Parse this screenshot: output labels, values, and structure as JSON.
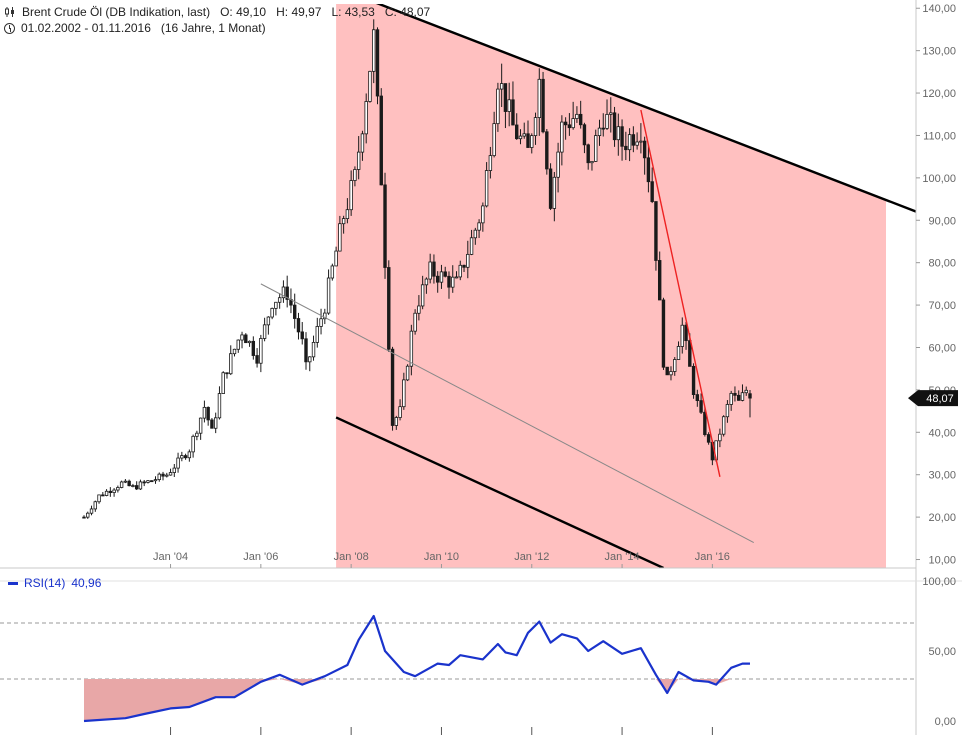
{
  "header": {
    "instrument": "Brent Crude Öl (DB Indikation, last)",
    "open": "O: 49,10",
    "high": "H: 49,97",
    "low": "L: 43,53",
    "close": "C: 48,07",
    "range": "01.02.2002 - 01.11.2016",
    "duration": "(16 Jahre, 1 Monat)"
  },
  "price_tag": "48,07",
  "rsi_legend": {
    "label": "RSI(14)",
    "value": "40,96"
  },
  "colors": {
    "channel_fill": "#ffc0c0",
    "candle": "#1a1a1a",
    "rsi_line": "#1a33cc",
    "rsi_fill": "#e8a7a7",
    "trend_red": "#ee2222",
    "mid_line": "#888888",
    "price_tag_bg": "#111111"
  },
  "chart_data": [
    {
      "type": "candlestick",
      "title": "Brent Crude Öl (DB Indikation, last)",
      "x_tick_labels": [
        "Jan '04",
        "Jan '06",
        "Jan '08",
        "Jan '10",
        "Jan '12",
        "Jan '14",
        "Jan '16"
      ],
      "y_tick_labels": [
        "10,00",
        "20,00",
        "30,00",
        "40,00",
        "50,00",
        "60,00",
        "70,00",
        "80,00",
        "90,00",
        "100,00",
        "110,00",
        "120,00",
        "130,00",
        "140,00"
      ],
      "ylim": [
        8,
        141
      ],
      "x_range": [
        "2002-02",
        "2016-11"
      ],
      "grid": false,
      "series_anchor_points": [
        [
          "2002-02",
          20
        ],
        [
          "2002-06",
          25
        ],
        [
          "2002-12",
          28
        ],
        [
          "2003-03",
          27
        ],
        [
          "2003-06",
          28
        ],
        [
          "2003-12",
          30
        ],
        [
          "2004-06",
          36
        ],
        [
          "2004-10",
          46
        ],
        [
          "2004-12",
          40
        ],
        [
          "2005-03",
          53
        ],
        [
          "2005-08",
          64
        ],
        [
          "2005-12",
          58
        ],
        [
          "2006-04",
          71
        ],
        [
          "2006-08",
          73
        ],
        [
          "2006-12",
          61
        ],
        [
          "2007-01",
          55
        ],
        [
          "2007-06",
          70
        ],
        [
          "2007-11",
          91
        ],
        [
          "2008-02",
          100
        ],
        [
          "2008-07",
          133
        ],
        [
          "2008-09",
          100
        ],
        [
          "2008-12",
          42
        ],
        [
          "2009-02",
          45
        ],
        [
          "2009-06",
          69
        ],
        [
          "2009-10",
          78
        ],
        [
          "2010-05",
          75
        ],
        [
          "2010-12",
          93
        ],
        [
          "2011-04",
          124
        ],
        [
          "2011-08",
          112
        ],
        [
          "2011-12",
          106
        ],
        [
          "2012-03",
          123
        ],
        [
          "2012-06",
          95
        ],
        [
          "2012-09",
          112
        ],
        [
          "2013-01",
          115
        ],
        [
          "2013-04",
          102
        ],
        [
          "2013-08",
          115
        ],
        [
          "2014-01",
          108
        ],
        [
          "2014-06",
          112
        ],
        [
          "2014-09",
          95
        ],
        [
          "2014-12",
          57
        ],
        [
          "2015-01",
          52
        ],
        [
          "2015-05",
          65
        ],
        [
          "2015-08",
          50
        ],
        [
          "2015-12",
          37
        ],
        [
          "2016-01",
          34
        ],
        [
          "2016-03",
          40
        ],
        [
          "2016-06",
          49
        ],
        [
          "2016-08",
          47
        ],
        [
          "2016-10",
          50
        ],
        [
          "2016-11",
          48.07
        ]
      ],
      "last": {
        "open": 49.1,
        "high": 49.97,
        "low": 43.53,
        "close": 48.07
      },
      "annotations": {
        "channel_upper": [
          [
            "2008-07",
            141.5
          ],
          [
            "2021-04",
            89
          ]
        ],
        "channel_lower": [
          [
            "2007-09",
            43.5
          ],
          [
            "2014-12",
            8
          ]
        ],
        "mid_line": [
          [
            "2006-01",
            75
          ],
          [
            "2016-12",
            14
          ]
        ],
        "red_trend": [
          [
            "2014-06",
            116
          ],
          [
            "2016-03",
            29.5
          ]
        ],
        "channel_shading_start": "2007-09"
      }
    },
    {
      "type": "line",
      "title": "RSI(14)",
      "y_tick_labels": [
        "0,00",
        "50,00",
        "100,00"
      ],
      "ylim": [
        0,
        100
      ],
      "reference_levels": [
        30,
        70
      ],
      "last_value": 40.96,
      "series": [
        {
          "name": "RSI(14)",
          "points": [
            [
              "2002-02",
              0
            ],
            [
              "2003-01",
              2
            ],
            [
              "2003-06",
              5
            ],
            [
              "2004-01",
              9
            ],
            [
              "2004-06",
              10
            ],
            [
              "2005-01",
              17
            ],
            [
              "2005-06",
              17
            ],
            [
              "2006-01",
              28
            ],
            [
              "2006-06",
              33
            ],
            [
              "2006-12",
              26
            ],
            [
              "2007-06",
              32
            ],
            [
              "2007-12",
              40
            ],
            [
              "2008-03",
              58
            ],
            [
              "2008-07",
              75
            ],
            [
              "2008-10",
              50
            ],
            [
              "2009-03",
              35
            ],
            [
              "2009-06",
              32
            ],
            [
              "2009-12",
              41
            ],
            [
              "2010-03",
              40
            ],
            [
              "2010-06",
              47
            ],
            [
              "2010-12",
              44
            ],
            [
              "2011-04",
              55
            ],
            [
              "2011-06",
              49
            ],
            [
              "2011-09",
              47
            ],
            [
              "2011-12",
              63
            ],
            [
              "2012-03",
              71
            ],
            [
              "2012-06",
              56
            ],
            [
              "2012-09",
              62
            ],
            [
              "2013-01",
              59
            ],
            [
              "2013-04",
              50
            ],
            [
              "2013-08",
              57
            ],
            [
              "2014-01",
              48
            ],
            [
              "2014-06",
              52
            ],
            [
              "2014-10",
              33
            ],
            [
              "2015-01",
              20
            ],
            [
              "2015-04",
              35
            ],
            [
              "2015-08",
              29
            ],
            [
              "2015-12",
              28
            ],
            [
              "2016-02",
              26
            ],
            [
              "2016-06",
              38
            ],
            [
              "2016-09",
              41
            ],
            [
              "2016-11",
              40.96
            ]
          ]
        }
      ]
    }
  ]
}
